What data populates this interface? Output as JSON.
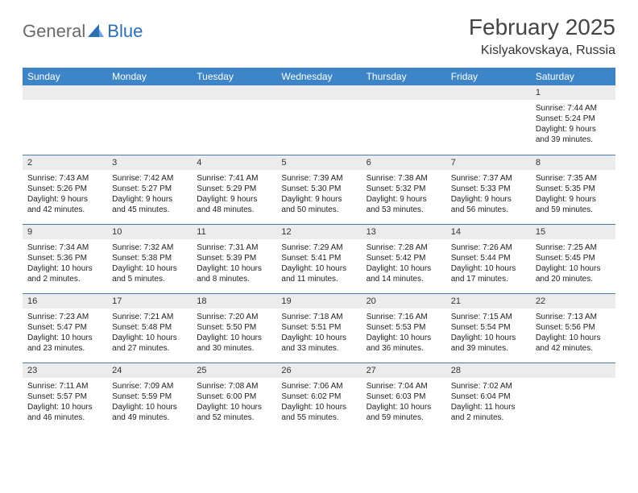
{
  "logo": {
    "word1": "General",
    "word2": "Blue",
    "triangle_color": "#2d6fb3"
  },
  "title": "February 2025",
  "location": "Kislyakovskaya, Russia",
  "header_bg": "#3d85c6",
  "daynum_bg": "#ececec",
  "row_border": "#4a7aa8",
  "weekdays": [
    "Sunday",
    "Monday",
    "Tuesday",
    "Wednesday",
    "Thursday",
    "Friday",
    "Saturday"
  ],
  "weeks": [
    [
      null,
      null,
      null,
      null,
      null,
      null,
      {
        "n": "1",
        "sunrise": "Sunrise: 7:44 AM",
        "sunset": "Sunset: 5:24 PM",
        "daylight": "Daylight: 9 hours and 39 minutes."
      }
    ],
    [
      {
        "n": "2",
        "sunrise": "Sunrise: 7:43 AM",
        "sunset": "Sunset: 5:26 PM",
        "daylight": "Daylight: 9 hours and 42 minutes."
      },
      {
        "n": "3",
        "sunrise": "Sunrise: 7:42 AM",
        "sunset": "Sunset: 5:27 PM",
        "daylight": "Daylight: 9 hours and 45 minutes."
      },
      {
        "n": "4",
        "sunrise": "Sunrise: 7:41 AM",
        "sunset": "Sunset: 5:29 PM",
        "daylight": "Daylight: 9 hours and 48 minutes."
      },
      {
        "n": "5",
        "sunrise": "Sunrise: 7:39 AM",
        "sunset": "Sunset: 5:30 PM",
        "daylight": "Daylight: 9 hours and 50 minutes."
      },
      {
        "n": "6",
        "sunrise": "Sunrise: 7:38 AM",
        "sunset": "Sunset: 5:32 PM",
        "daylight": "Daylight: 9 hours and 53 minutes."
      },
      {
        "n": "7",
        "sunrise": "Sunrise: 7:37 AM",
        "sunset": "Sunset: 5:33 PM",
        "daylight": "Daylight: 9 hours and 56 minutes."
      },
      {
        "n": "8",
        "sunrise": "Sunrise: 7:35 AM",
        "sunset": "Sunset: 5:35 PM",
        "daylight": "Daylight: 9 hours and 59 minutes."
      }
    ],
    [
      {
        "n": "9",
        "sunrise": "Sunrise: 7:34 AM",
        "sunset": "Sunset: 5:36 PM",
        "daylight": "Daylight: 10 hours and 2 minutes."
      },
      {
        "n": "10",
        "sunrise": "Sunrise: 7:32 AM",
        "sunset": "Sunset: 5:38 PM",
        "daylight": "Daylight: 10 hours and 5 minutes."
      },
      {
        "n": "11",
        "sunrise": "Sunrise: 7:31 AM",
        "sunset": "Sunset: 5:39 PM",
        "daylight": "Daylight: 10 hours and 8 minutes."
      },
      {
        "n": "12",
        "sunrise": "Sunrise: 7:29 AM",
        "sunset": "Sunset: 5:41 PM",
        "daylight": "Daylight: 10 hours and 11 minutes."
      },
      {
        "n": "13",
        "sunrise": "Sunrise: 7:28 AM",
        "sunset": "Sunset: 5:42 PM",
        "daylight": "Daylight: 10 hours and 14 minutes."
      },
      {
        "n": "14",
        "sunrise": "Sunrise: 7:26 AM",
        "sunset": "Sunset: 5:44 PM",
        "daylight": "Daylight: 10 hours and 17 minutes."
      },
      {
        "n": "15",
        "sunrise": "Sunrise: 7:25 AM",
        "sunset": "Sunset: 5:45 PM",
        "daylight": "Daylight: 10 hours and 20 minutes."
      }
    ],
    [
      {
        "n": "16",
        "sunrise": "Sunrise: 7:23 AM",
        "sunset": "Sunset: 5:47 PM",
        "daylight": "Daylight: 10 hours and 23 minutes."
      },
      {
        "n": "17",
        "sunrise": "Sunrise: 7:21 AM",
        "sunset": "Sunset: 5:48 PM",
        "daylight": "Daylight: 10 hours and 27 minutes."
      },
      {
        "n": "18",
        "sunrise": "Sunrise: 7:20 AM",
        "sunset": "Sunset: 5:50 PM",
        "daylight": "Daylight: 10 hours and 30 minutes."
      },
      {
        "n": "19",
        "sunrise": "Sunrise: 7:18 AM",
        "sunset": "Sunset: 5:51 PM",
        "daylight": "Daylight: 10 hours and 33 minutes."
      },
      {
        "n": "20",
        "sunrise": "Sunrise: 7:16 AM",
        "sunset": "Sunset: 5:53 PM",
        "daylight": "Daylight: 10 hours and 36 minutes."
      },
      {
        "n": "21",
        "sunrise": "Sunrise: 7:15 AM",
        "sunset": "Sunset: 5:54 PM",
        "daylight": "Daylight: 10 hours and 39 minutes."
      },
      {
        "n": "22",
        "sunrise": "Sunrise: 7:13 AM",
        "sunset": "Sunset: 5:56 PM",
        "daylight": "Daylight: 10 hours and 42 minutes."
      }
    ],
    [
      {
        "n": "23",
        "sunrise": "Sunrise: 7:11 AM",
        "sunset": "Sunset: 5:57 PM",
        "daylight": "Daylight: 10 hours and 46 minutes."
      },
      {
        "n": "24",
        "sunrise": "Sunrise: 7:09 AM",
        "sunset": "Sunset: 5:59 PM",
        "daylight": "Daylight: 10 hours and 49 minutes."
      },
      {
        "n": "25",
        "sunrise": "Sunrise: 7:08 AM",
        "sunset": "Sunset: 6:00 PM",
        "daylight": "Daylight: 10 hours and 52 minutes."
      },
      {
        "n": "26",
        "sunrise": "Sunrise: 7:06 AM",
        "sunset": "Sunset: 6:02 PM",
        "daylight": "Daylight: 10 hours and 55 minutes."
      },
      {
        "n": "27",
        "sunrise": "Sunrise: 7:04 AM",
        "sunset": "Sunset: 6:03 PM",
        "daylight": "Daylight: 10 hours and 59 minutes."
      },
      {
        "n": "28",
        "sunrise": "Sunrise: 7:02 AM",
        "sunset": "Sunset: 6:04 PM",
        "daylight": "Daylight: 11 hours and 2 minutes."
      },
      null
    ]
  ]
}
